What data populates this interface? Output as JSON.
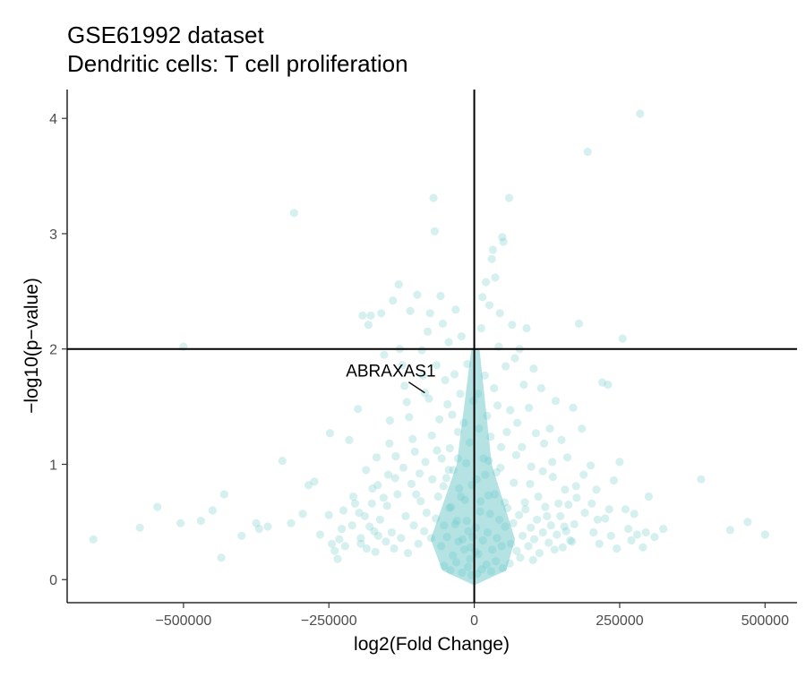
{
  "chart_data": {
    "type": "scatter",
    "title": "GSE61992 dataset",
    "subtitle": "Dendritic cells: T cell proliferation",
    "xlabel": "log2(Fold Change)",
    "ylabel": "−log10(p−value)",
    "xlim": [
      -700000,
      555000
    ],
    "ylim": [
      -0.2,
      4.25
    ],
    "x_ticks": [
      {
        "value": -500000,
        "label": "−500000"
      },
      {
        "value": -250000,
        "label": "−250000"
      },
      {
        "value": 0,
        "label": "0"
      },
      {
        "value": 250000,
        "label": "250000"
      },
      {
        "value": 500000,
        "label": "500000"
      }
    ],
    "y_ticks": [
      {
        "value": 0,
        "label": "0"
      },
      {
        "value": 1,
        "label": "1"
      },
      {
        "value": 2,
        "label": "2"
      },
      {
        "value": 3,
        "label": "3"
      },
      {
        "value": 4,
        "label": "4"
      }
    ],
    "reference_lines": {
      "x": 0,
      "y": 2
    },
    "grid": false,
    "legend": "none",
    "point_color": "#5bc2c4",
    "point_opacity": 0.25,
    "annotations": [
      {
        "label": "ABRAXAS1",
        "x": -85000,
        "y": 1.62
      }
    ],
    "points": [
      [
        -655000,
        0.35
      ],
      [
        -575000,
        0.45
      ],
      [
        -545000,
        0.63
      ],
      [
        -505000,
        0.49
      ],
      [
        -500000,
        2.02
      ],
      [
        -470000,
        0.51
      ],
      [
        -450000,
        0.6
      ],
      [
        -430000,
        0.74
      ],
      [
        -435000,
        0.19
      ],
      [
        -400000,
        0.38
      ],
      [
        -375000,
        0.49
      ],
      [
        -370000,
        0.44
      ],
      [
        -355000,
        0.46
      ],
      [
        -330000,
        1.03
      ],
      [
        -315000,
        0.49
      ],
      [
        -310000,
        3.18
      ],
      [
        -295000,
        0.57
      ],
      [
        -285000,
        0.82
      ],
      [
        -275000,
        0.85
      ],
      [
        -265000,
        0.39
      ],
      [
        -250000,
        0.56
      ],
      [
        -248000,
        1.27
      ],
      [
        -245000,
        0.31
      ],
      [
        -240000,
        0.25
      ],
      [
        -235000,
        0.18
      ],
      [
        -232000,
        0.35
      ],
      [
        -228000,
        0.44
      ],
      [
        -225000,
        0.6
      ],
      [
        -222000,
        0.29
      ],
      [
        -215000,
        1.21
      ],
      [
        -210000,
        0.47
      ],
      [
        -205000,
        0.66
      ],
      [
        -200000,
        1.48
      ],
      [
        -195000,
        0.36
      ],
      [
        -192000,
        2.29
      ],
      [
        -188000,
        0.55
      ],
      [
        -185000,
        0.27
      ],
      [
        -182000,
        2.21
      ],
      [
        -178000,
        2.29
      ],
      [
        -175000,
        0.79
      ],
      [
        -172000,
        0.42
      ],
      [
        -168000,
        1.06
      ],
      [
        -165000,
        0.38
      ],
      [
        -160000,
        2.31
      ],
      [
        -155000,
        1.95
      ],
      [
        -150000,
        0.64
      ],
      [
        -145000,
        1.38
      ],
      [
        -140000,
        2.42
      ],
      [
        -135000,
        1.07
      ],
      [
        -130000,
        2.56
      ],
      [
        -128000,
        2.0
      ],
      [
        -124000,
        1.86
      ],
      [
        -120000,
        1.68
      ],
      [
        -116000,
        1.54
      ],
      [
        -112000,
        1.41
      ],
      [
        -110000,
        2.33
      ],
      [
        -106000,
        1.22
      ],
      [
        -102000,
        1.11
      ],
      [
        -98000,
        2.47
      ],
      [
        -94000,
        0.92
      ],
      [
        -90000,
        1.99
      ],
      [
        -88000,
        1.77
      ],
      [
        -85000,
        1.62
      ],
      [
        -82000,
        0.58
      ],
      [
        -80000,
        2.15
      ],
      [
        -78000,
        1.57
      ],
      [
        -76000,
        2.31
      ],
      [
        -73000,
        1.25
      ],
      [
        -70000,
        3.31
      ],
      [
        -68000,
        3.02
      ],
      [
        -65000,
        1.86
      ],
      [
        -62000,
        0.72
      ],
      [
        -60000,
        1.39
      ],
      [
        -58000,
        2.46
      ],
      [
        -56000,
        1.05
      ],
      [
        -54000,
        2.22
      ],
      [
        -52000,
        0.47
      ],
      [
        -50000,
        1.73
      ],
      [
        -48000,
        0.88
      ],
      [
        -46000,
        1.52
      ],
      [
        -44000,
        2.06
      ],
      [
        -42000,
        1.14
      ],
      [
        -40000,
        0.63
      ],
      [
        -38000,
        1.43
      ],
      [
        -36000,
        0.95
      ],
      [
        -34000,
        1.78
      ],
      [
        -32000,
        2.34
      ],
      [
        -30000,
        0.51
      ],
      [
        -28000,
        1.28
      ],
      [
        -26000,
        0.79
      ],
      [
        -24000,
        1.61
      ],
      [
        -22000,
        2.11
      ],
      [
        -20000,
        0.35
      ],
      [
        -18000,
        1.36
      ],
      [
        -16000,
        0.69
      ],
      [
        -14000,
        1.01
      ],
      [
        -12000,
        1.87
      ],
      [
        -10000,
        0.42
      ],
      [
        -8000,
        1.19
      ],
      [
        -6000,
        0.28
      ],
      [
        -4000,
        0.82
      ],
      [
        -2000,
        1.55
      ],
      [
        2000,
        0.24
      ],
      [
        4000,
        0.87
      ],
      [
        6000,
        1.61
      ],
      [
        8000,
        1.31
      ],
      [
        10000,
        0.59
      ],
      [
        12000,
        2.18
      ],
      [
        14000,
        2.45
      ],
      [
        16000,
        1.05
      ],
      [
        18000,
        1.77
      ],
      [
        20000,
        2.58
      ],
      [
        22000,
        1.42
      ],
      [
        24000,
        0.73
      ],
      [
        26000,
        2.38
      ],
      [
        28000,
        1.24
      ],
      [
        30000,
        2.78
      ],
      [
        32000,
        2.86
      ],
      [
        34000,
        1.66
      ],
      [
        36000,
        2.62
      ],
      [
        38000,
        0.93
      ],
      [
        40000,
        1.51
      ],
      [
        42000,
        2.02
      ],
      [
        44000,
        2.31
      ],
      [
        46000,
        1.15
      ],
      [
        48000,
        2.97
      ],
      [
        50000,
        2.93
      ],
      [
        52000,
        0.67
      ],
      [
        54000,
        1.85
      ],
      [
        56000,
        1.28
      ],
      [
        60000,
        3.31
      ],
      [
        62000,
        1.47
      ],
      [
        65000,
        2.21
      ],
      [
        68000,
        0.84
      ],
      [
        70000,
        1.92
      ],
      [
        74000,
        1.36
      ],
      [
        78000,
        2.0
      ],
      [
        82000,
        1.15
      ],
      [
        85000,
        1.69
      ],
      [
        88000,
        0.61
      ],
      [
        90000,
        2.18
      ],
      [
        94000,
        1.49
      ],
      [
        98000,
        0.98
      ],
      [
        102000,
        1.83
      ],
      [
        106000,
        1.27
      ],
      [
        110000,
        0.72
      ],
      [
        115000,
        1.66
      ],
      [
        120000,
        1.18
      ],
      [
        125000,
        0.55
      ],
      [
        130000,
        1.31
      ],
      [
        135000,
        0.89
      ],
      [
        140000,
        1.55
      ],
      [
        145000,
        0.66
      ],
      [
        150000,
        1.21
      ],
      [
        155000,
        0.46
      ],
      [
        160000,
        1.06
      ],
      [
        165000,
        0.34
      ],
      [
        170000,
        1.49
      ],
      [
        175000,
        0.81
      ],
      [
        180000,
        2.22
      ],
      [
        185000,
        1.31
      ],
      [
        190000,
        0.58
      ],
      [
        195000,
        3.71
      ],
      [
        200000,
        0.99
      ],
      [
        205000,
        0.41
      ],
      [
        210000,
        0.78
      ],
      [
        215000,
        0.31
      ],
      [
        220000,
        1.71
      ],
      [
        225000,
        0.53
      ],
      [
        230000,
        1.69
      ],
      [
        235000,
        0.38
      ],
      [
        240000,
        0.86
      ],
      [
        245000,
        0.27
      ],
      [
        250000,
        1.02
      ],
      [
        255000,
        2.09
      ],
      [
        260000,
        0.61
      ],
      [
        265000,
        0.44
      ],
      [
        270000,
        0.34
      ],
      [
        275000,
        0.57
      ],
      [
        280000,
        0.39
      ],
      [
        285000,
        4.04
      ],
      [
        290000,
        0.28
      ],
      [
        295000,
        0.41
      ],
      [
        300000,
        0.72
      ],
      [
        310000,
        0.37
      ],
      [
        325000,
        0.44
      ],
      [
        390000,
        0.87
      ],
      [
        440000,
        0.43
      ],
      [
        470000,
        0.5
      ],
      [
        500000,
        0.39
      ],
      [
        -195000,
        0.31
      ],
      [
        -180000,
        0.46
      ],
      [
        -170000,
        0.24
      ],
      [
        -162000,
        0.52
      ],
      [
        -152000,
        0.33
      ],
      [
        -148000,
        0.91
      ],
      [
        -142000,
        0.41
      ],
      [
        -138000,
        0.27
      ],
      [
        -132000,
        0.74
      ],
      [
        -126000,
        0.36
      ],
      [
        -118000,
        0.55
      ],
      [
        -114000,
        0.23
      ],
      [
        -108000,
        0.83
      ],
      [
        -104000,
        0.47
      ],
      [
        -96000,
        0.31
      ],
      [
        -92000,
        0.68
      ],
      [
        -86000,
        0.42
      ],
      [
        -84000,
        1.02
      ],
      [
        -74000,
        0.36
      ],
      [
        -66000,
        0.53
      ],
      [
        -64000,
        1.12
      ],
      [
        -57000,
        0.29
      ],
      [
        -53000,
        0.81
      ],
      [
        -47000,
        0.37
      ],
      [
        -43000,
        0.62
      ],
      [
        -37000,
        0.21
      ],
      [
        -33000,
        0.48
      ],
      [
        -27000,
        0.33
      ],
      [
        -23000,
        0.72
      ],
      [
        -17000,
        0.26
      ],
      [
        -13000,
        0.51
      ],
      [
        -7000,
        0.18
      ],
      [
        -3000,
        0.37
      ],
      [
        3000,
        0.45
      ],
      [
        7000,
        0.22
      ],
      [
        11000,
        0.68
      ],
      [
        15000,
        0.34
      ],
      [
        19000,
        0.91
      ],
      [
        23000,
        0.41
      ],
      [
        27000,
        0.57
      ],
      [
        31000,
        0.26
      ],
      [
        35000,
        0.74
      ],
      [
        39000,
        0.36
      ],
      [
        43000,
        0.52
      ],
      [
        47000,
        0.29
      ],
      [
        53000,
        0.46
      ],
      [
        57000,
        0.62
      ],
      [
        63000,
        0.31
      ],
      [
        67000,
        0.49
      ],
      [
        73000,
        0.25
      ],
      [
        77000,
        0.56
      ],
      [
        83000,
        0.38
      ],
      [
        87000,
        0.67
      ],
      [
        93000,
        0.29
      ],
      [
        97000,
        0.45
      ],
      [
        103000,
        0.35
      ],
      [
        108000,
        0.52
      ],
      [
        112000,
        0.23
      ],
      [
        118000,
        0.41
      ],
      [
        122000,
        0.63
      ],
      [
        128000,
        0.32
      ],
      [
        132000,
        0.47
      ],
      [
        138000,
        0.26
      ],
      [
        142000,
        0.39
      ],
      [
        148000,
        0.55
      ],
      [
        152000,
        0.28
      ],
      [
        158000,
        0.42
      ],
      [
        162000,
        0.65
      ],
      [
        168000,
        0.33
      ],
      [
        172000,
        0.48
      ],
      [
        -208000,
        0.72
      ],
      [
        -198000,
        0.58
      ],
      [
        -186000,
        0.95
      ],
      [
        -176000,
        0.66
      ],
      [
        -166000,
        0.82
      ],
      [
        -156000,
        0.71
      ],
      [
        -146000,
        1.18
      ],
      [
        -136000,
        0.88
      ],
      [
        -122000,
        0.97
      ],
      [
        -100000,
        0.74
      ],
      [
        -72000,
        0.87
      ],
      [
        -44000,
        0.95
      ],
      [
        -28000,
        1.05
      ],
      [
        25000,
        1.03
      ],
      [
        45000,
        0.97
      ],
      [
        72000,
        1.08
      ],
      [
        96000,
        0.83
      ],
      [
        118000,
        0.94
      ],
      [
        134000,
        1.02
      ],
      [
        156000,
        0.78
      ],
      [
        176000,
        0.71
      ],
      [
        188000,
        0.91
      ],
      [
        202000,
        0.66
      ],
      [
        212000,
        0.52
      ],
      [
        232000,
        0.61
      ],
      [
        -52000,
        0.12
      ],
      [
        -41000,
        0.08
      ],
      [
        -31000,
        0.15
      ],
      [
        -21000,
        0.06
      ],
      [
        -11000,
        0.11
      ],
      [
        -5000,
        0.04
      ],
      [
        5000,
        0.05
      ],
      [
        13000,
        0.09
      ],
      [
        21000,
        0.13
      ],
      [
        29000,
        0.07
      ],
      [
        37000,
        0.16
      ],
      [
        49000,
        0.1
      ],
      [
        61000,
        0.14
      ],
      [
        79000,
        0.19
      ],
      [
        101000,
        0.17
      ]
    ]
  }
}
